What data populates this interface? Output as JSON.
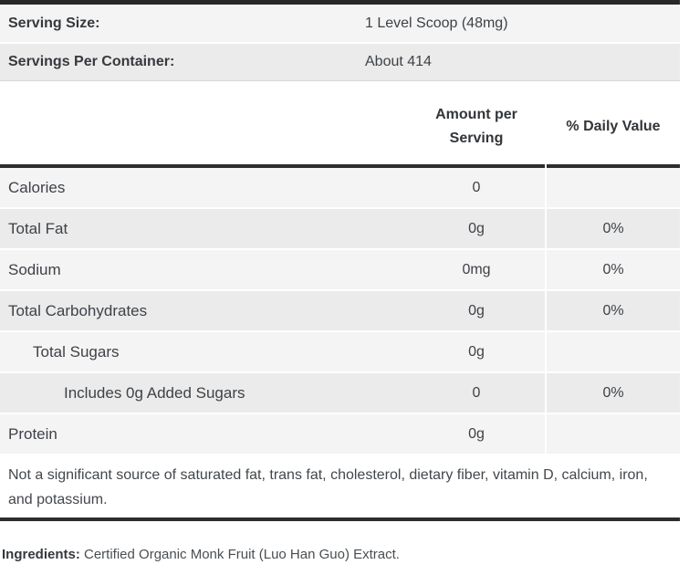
{
  "colors": {
    "rule_dark": "#2b2d2f",
    "stripe_light": "#f4f4f4",
    "stripe_dark": "#ebebeb",
    "text": "#3e4247"
  },
  "serving_info": {
    "rows": [
      {
        "label": "Serving Size:",
        "value": "1 Level Scoop (48mg)"
      },
      {
        "label": "Servings Per Container:",
        "value": "About 414"
      }
    ]
  },
  "nutrition_table": {
    "header": {
      "amount_line1": "Amount per",
      "amount_line2": "Serving",
      "daily_value": "% Daily Value"
    },
    "rows": [
      {
        "name": "Calories",
        "amount": "0",
        "dv": ""
      },
      {
        "name": "Total Fat",
        "amount": "0g",
        "dv": "0%"
      },
      {
        "name": "Sodium",
        "amount": "0mg",
        "dv": "0%"
      },
      {
        "name": "Total Carbohydrates",
        "amount": "0g",
        "dv": "0%"
      },
      {
        "name": "Total Sugars",
        "amount": "0g",
        "dv": ""
      },
      {
        "name": "Includes 0g Added Sugars",
        "amount": "0",
        "dv": "0%"
      },
      {
        "name": "Protein",
        "amount": "0g",
        "dv": ""
      }
    ],
    "footnote": "Not a significant source of saturated fat, trans fat, cholesterol, dietary fiber, vitamin D, calcium, iron, and potassium."
  },
  "ingredients": {
    "label": "Ingredients:",
    "text": " Certified Organic Monk Fruit (Luo Han Guo) Extract."
  }
}
